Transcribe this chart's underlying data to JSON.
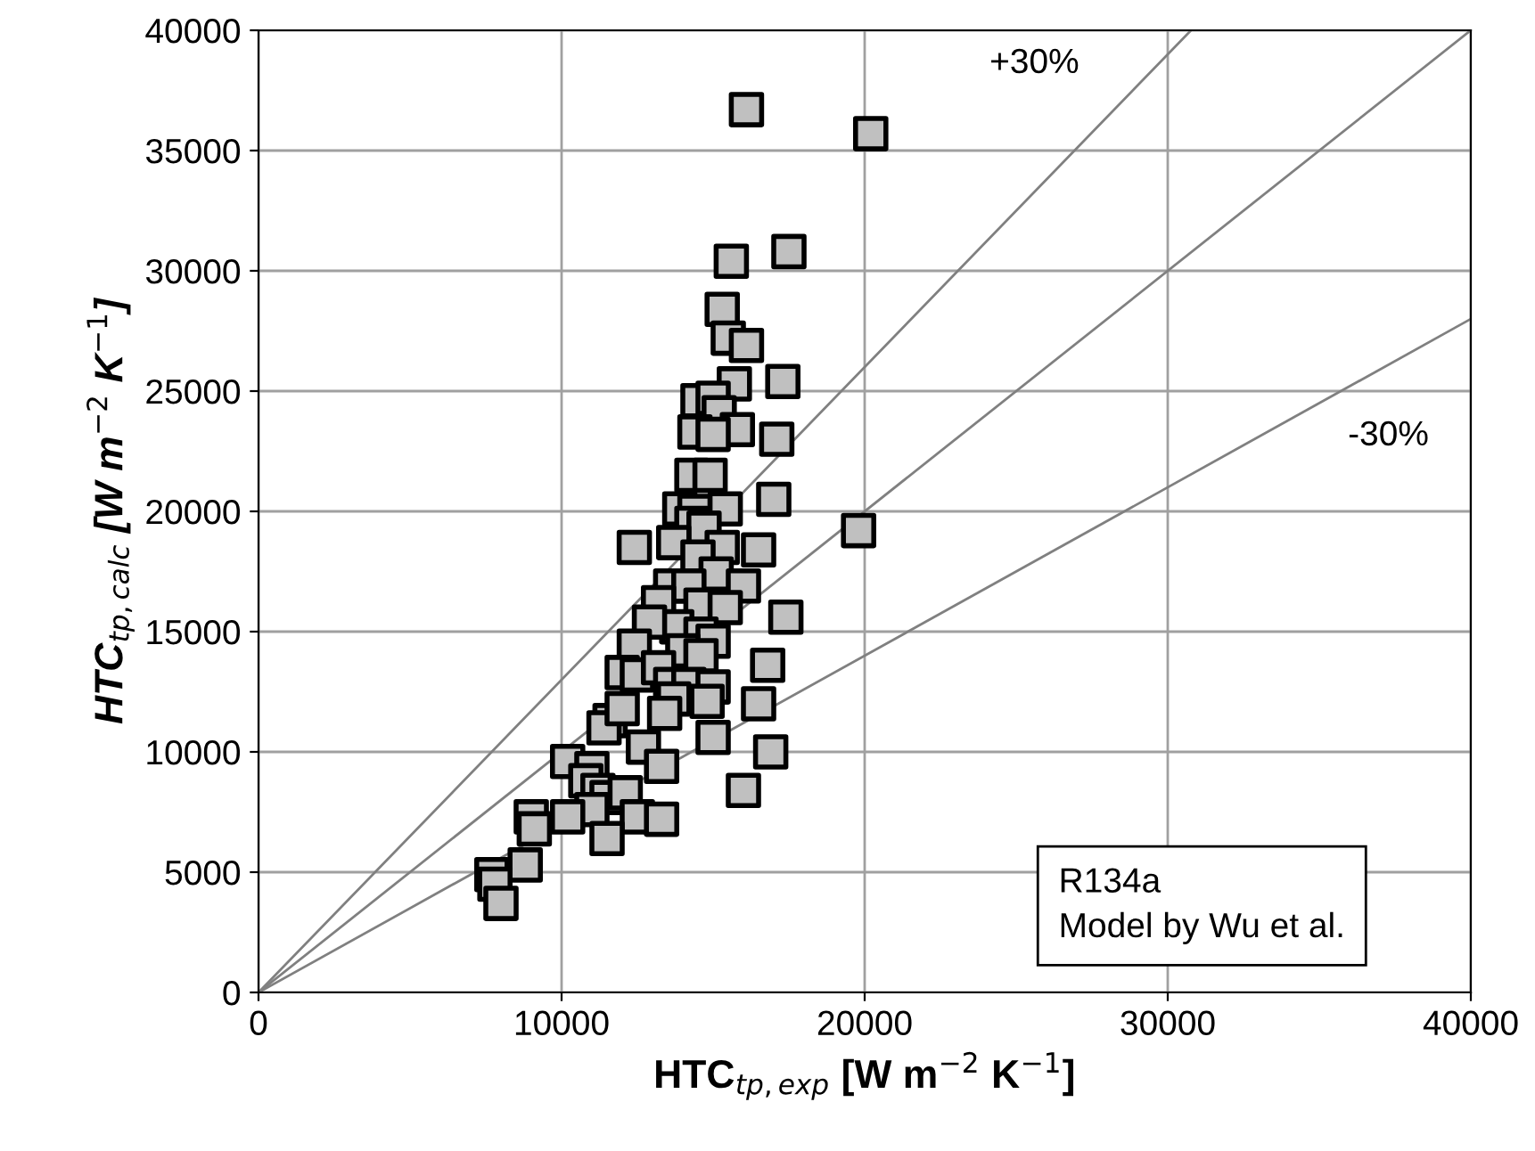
{
  "chart_data": {
    "type": "scatter",
    "xlabel": "HTC$_{tp,exp}$ [W m$^{−2}$ K$^{−1}$]",
    "ylabel": "HTC$_{tp,calc}$ [W m$^{−2}$ K$^{−1}$]",
    "xlim": [
      0,
      40000
    ],
    "ylim": [
      0,
      40000
    ],
    "xticks": [
      0,
      10000,
      20000,
      30000,
      40000
    ],
    "yticks": [
      0,
      5000,
      10000,
      15000,
      20000,
      25000,
      30000,
      35000,
      40000
    ],
    "grid": true,
    "marker": "square",
    "series": [
      {
        "color": "#c0c0c0",
        "x": [
          16100,
          20200,
          15600,
          17500,
          15300,
          15500,
          16100,
          17300,
          15700,
          14500,
          15000,
          15200,
          14400,
          15800,
          15000,
          17100,
          14300,
          14900,
          12400,
          13900,
          14400,
          15400,
          17000,
          14300,
          14700,
          16500,
          13700,
          15300,
          14500,
          19800,
          15100,
          13600,
          14200,
          16000,
          13200,
          14600,
          15400,
          13800,
          12900,
          17400,
          14600,
          15000,
          12400,
          14000,
          14600,
          12000,
          12500,
          13200,
          13600,
          14200,
          15000,
          16800,
          13700,
          14800,
          13400,
          11600,
          11400,
          12000,
          16500,
          12700,
          15000,
          16900,
          10200,
          11000,
          13300,
          10800,
          11200,
          11500,
          12100,
          11000,
          10200,
          12500,
          13300,
          11500,
          9000,
          9100,
          8800,
          7700,
          7800,
          8000,
          16000
        ],
        "values": [
          36700,
          35700,
          30400,
          30800,
          28400,
          27200,
          26900,
          25400,
          25300,
          24600,
          24700,
          24100,
          23300,
          23400,
          23200,
          23000,
          21500,
          21500,
          18500,
          20100,
          20000,
          20100,
          20500,
          19500,
          19300,
          18400,
          18700,
          18500,
          18100,
          19200,
          17400,
          16900,
          16900,
          16900,
          16200,
          16100,
          16000,
          15200,
          15400,
          15600,
          14900,
          14600,
          14400,
          14200,
          14000,
          13300,
          13200,
          13500,
          12800,
          12800,
          12700,
          13600,
          12200,
          12100,
          11600,
          11300,
          11000,
          11800,
          12000,
          10200,
          10600,
          10000,
          9600,
          9300,
          9400,
          8800,
          8400,
          8100,
          8300,
          7600,
          7300,
          7300,
          7200,
          6400,
          7300,
          6800,
          5300,
          4900,
          4500,
          3700,
          8400
        ]
      },
      {
        "type": "line",
        "color": "#808080",
        "marker": "none",
        "line_style": "solid",
        "x": [
          0,
          40000
        ],
        "values": [
          0,
          40000
        ]
      },
      {
        "type": "line",
        "color": "#808080",
        "marker": "none",
        "line_style": "solid",
        "x": [
          0,
          30769
        ],
        "values": [
          0,
          40000
        ]
      },
      {
        "type": "line",
        "color": "#808080",
        "marker": "none",
        "line_style": "solid",
        "x": [
          0,
          40000
        ],
        "values": [
          0,
          28000
        ]
      }
    ],
    "annotations": [
      "+30%",
      "-30%",
      "R134a\nModel by Wu et al."
    ]
  }
}
